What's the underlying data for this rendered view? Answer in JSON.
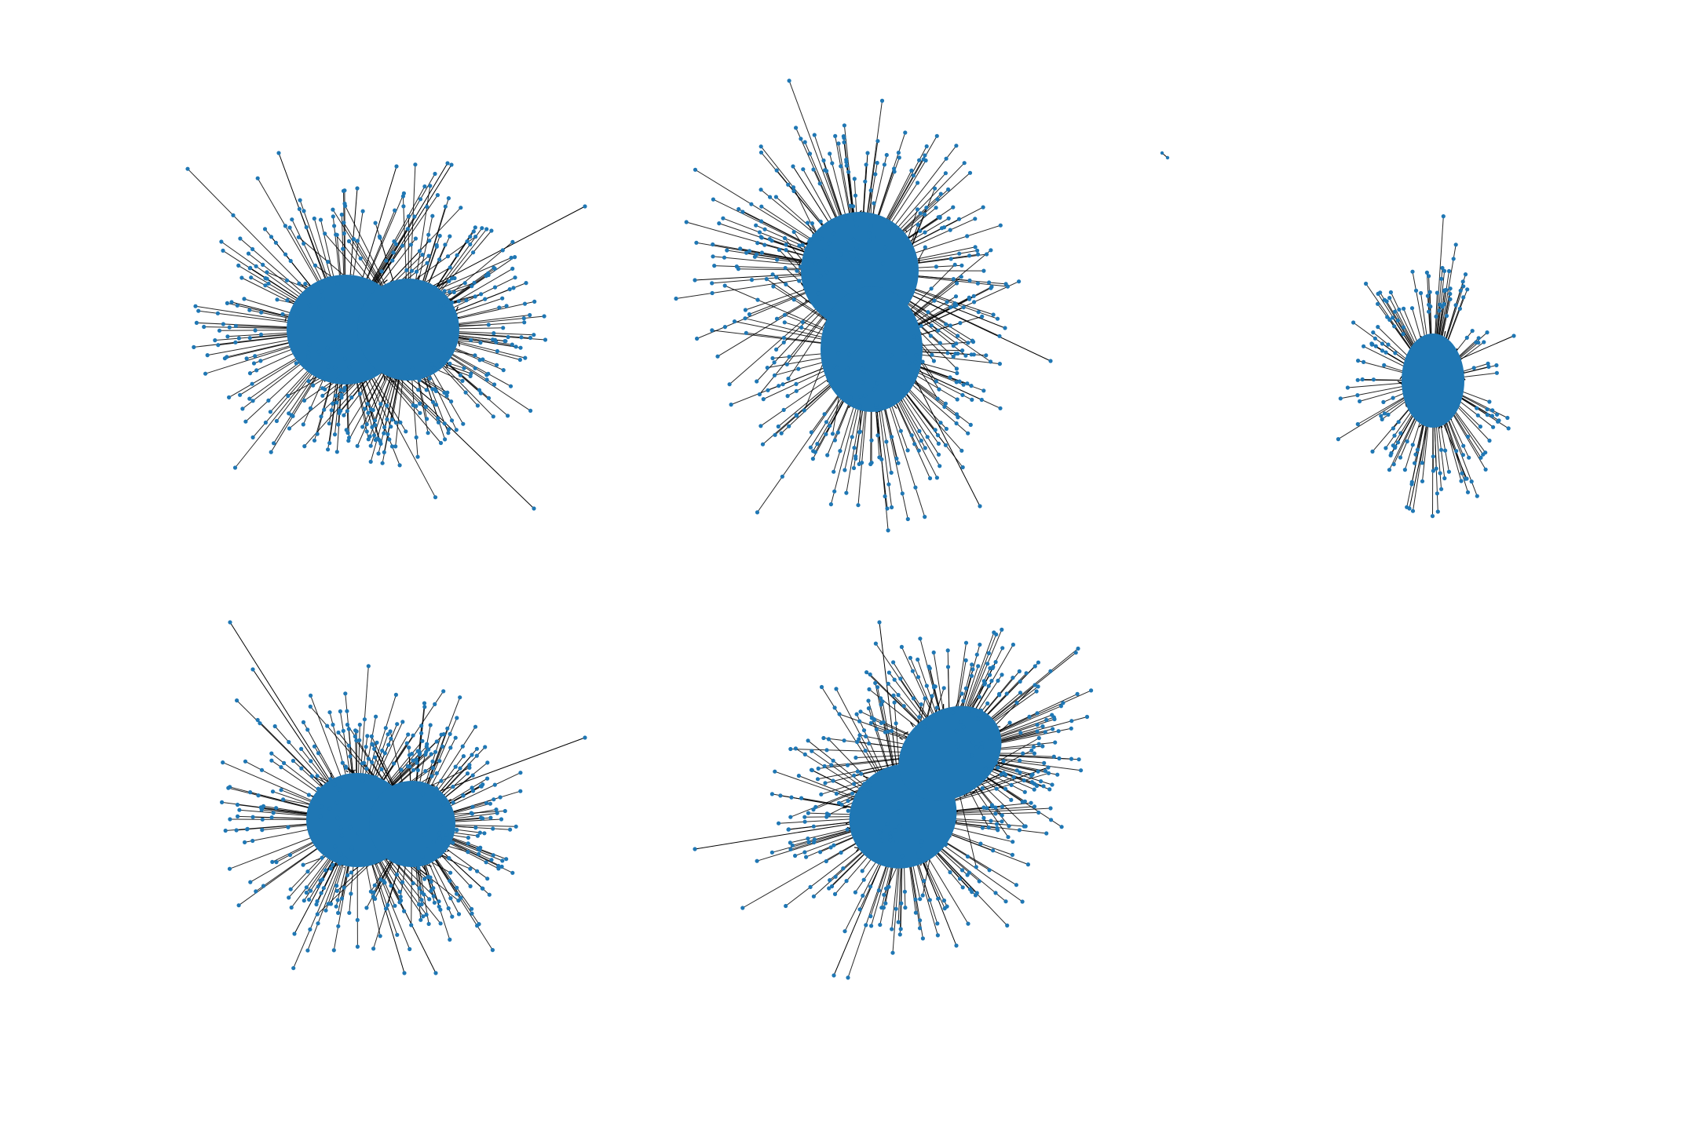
{
  "figure": {
    "background": "#ffffff",
    "node_color": "#1f77b4",
    "edge_color": "#000000",
    "panels": [
      {
        "id": "graph-1"
      },
      {
        "id": "graph-2"
      },
      {
        "id": "graph-3"
      },
      {
        "id": "graph-4"
      },
      {
        "id": "graph-5"
      }
    ]
  }
}
